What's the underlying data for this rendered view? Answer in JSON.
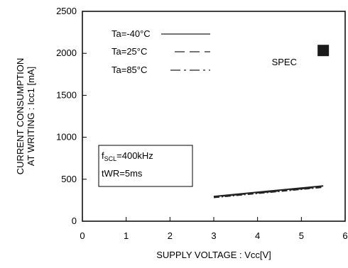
{
  "chart_data": {
    "type": "line",
    "xlabel": "SUPPLY VOLTAGE : Vcc[V]",
    "ylabel_line1": "CURRENT CONSUMPTION",
    "ylabel_line2": "AT WRITING : Icc1 [mA]",
    "xlim": [
      0,
      6
    ],
    "ylim": [
      0,
      2500
    ],
    "x_ticks": [
      "0",
      "1",
      "2",
      "3",
      "4",
      "5",
      "6"
    ],
    "y_ticks": [
      "0",
      "500",
      "1000",
      "1500",
      "2000",
      "2500"
    ],
    "x_tick_values": [
      0,
      1,
      2,
      3,
      4,
      5,
      6
    ],
    "y_tick_values": [
      0,
      500,
      1000,
      1500,
      2000,
      2500
    ],
    "grid": false,
    "legend_placement": "top-left",
    "series": [
      {
        "name": "Ta=-40°C",
        "style": "solid",
        "x": [
          3.0,
          5.5
        ],
        "y": [
          295,
          420
        ]
      },
      {
        "name": "Ta=25°C",
        "style": "dashed",
        "x": [
          3.0,
          5.5
        ],
        "y": [
          290,
          412
        ]
      },
      {
        "name": "Ta=85°C",
        "style": "dashdot",
        "x": [
          3.0,
          5.5
        ],
        "y": [
          283,
          405
        ]
      }
    ],
    "spec": {
      "label": "SPEC",
      "x": 5.5,
      "y": 2000
    },
    "conditions": {
      "line1_main": "f",
      "line1_sub": "SCL",
      "line1_rest": "=400kHz",
      "line2": "tWR=5ms"
    },
    "colors": {
      "axis": "#000000",
      "series": "#222222",
      "spec_marker": "#1a1a1a"
    }
  }
}
